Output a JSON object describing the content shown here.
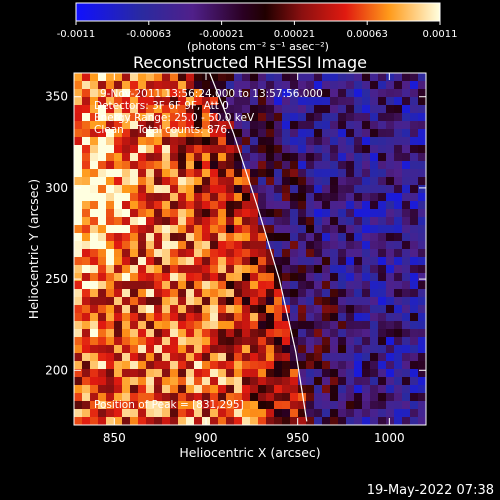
{
  "chart_data": {
    "type": "heatmap",
    "title": "Reconstructed RHESSI Image",
    "xlabel": "Heliocentric X (arcsec)",
    "ylabel": "Heliocentric Y (arcsec)",
    "xlim": [
      828,
      1020
    ],
    "ylim": [
      170,
      363
    ],
    "xticks": [
      850,
      900,
      950,
      1000
    ],
    "yticks": [
      200,
      250,
      300,
      350
    ],
    "colorbar": {
      "range": [
        -0.0011,
        0.0011
      ],
      "tick_labels": [
        "-0.0011",
        "-0.00063",
        "-0.00021",
        "0.00021",
        "0.00063",
        "0.0011"
      ],
      "label": "(photons cm⁻² s⁻¹ asec⁻²)"
    },
    "info_lines": [
      "9-Nov-2011 13:56:24.000 to 13:57:56.000",
      "Detectors: 3F 6F 9F, Att 0",
      "Energy Range: 25.0 - 50.0 keV",
      "Clean    Total counts: 876."
    ],
    "peak_label": "Position of Peak = [831,295]",
    "peak": [
      831,
      295
    ],
    "limb": [
      [
        902,
        363
      ],
      [
        915,
        330
      ],
      [
        928,
        290
      ],
      [
        940,
        250
      ],
      [
        949,
        210
      ],
      [
        955,
        172
      ]
    ],
    "colors": {
      "background": "#000000",
      "text": "#ffffff",
      "limb": "#ffffff"
    }
  },
  "timestamp": "19-May-2022 07:38"
}
